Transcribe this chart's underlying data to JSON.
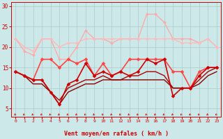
{
  "xlabel": "Vent moyen/en rafales ( km/h )",
  "xlim": [
    -0.5,
    23.5
  ],
  "ylim": [
    3,
    31
  ],
  "yticks": [
    5,
    10,
    15,
    20,
    25,
    30
  ],
  "xticks": [
    0,
    1,
    2,
    3,
    4,
    5,
    6,
    7,
    8,
    9,
    10,
    11,
    12,
    13,
    14,
    15,
    16,
    17,
    18,
    19,
    20,
    21,
    22,
    23
  ],
  "bg_color": "#cce8e8",
  "grid_color": "#aacccc",
  "lines": [
    {
      "y": [
        22,
        19,
        18,
        22,
        22,
        17,
        17,
        20,
        24,
        22,
        22,
        21,
        22,
        22,
        22,
        28,
        28,
        26,
        22,
        22,
        22,
        21,
        22,
        20
      ],
      "color": "#ffaaaa",
      "lw": 1.0,
      "marker": "D",
      "ms": 2.0,
      "zorder": 2
    },
    {
      "y": [
        22,
        20,
        19,
        22,
        22,
        20,
        21,
        21,
        22,
        22,
        22,
        22,
        22,
        22,
        22,
        22,
        22,
        22,
        22,
        21,
        21,
        21,
        22,
        20
      ],
      "color": "#ffbbbb",
      "lw": 1.0,
      "marker": "D",
      "ms": 2.0,
      "zorder": 2
    },
    {
      "y": [
        14,
        13,
        12,
        17,
        17,
        15,
        17,
        16,
        17,
        13,
        16,
        13,
        14,
        17,
        17,
        17,
        17,
        17,
        14,
        14,
        10,
        14,
        15,
        15
      ],
      "color": "#ff4444",
      "lw": 1.2,
      "marker": "D",
      "ms": 2.5,
      "zorder": 4
    },
    {
      "y": [
        14,
        13,
        12,
        12,
        9,
        6,
        11,
        12,
        16,
        13,
        14,
        13,
        14,
        13,
        14,
        17,
        16,
        17,
        8,
        10,
        10,
        13,
        15,
        15
      ],
      "color": "#cc0000",
      "lw": 1.2,
      "marker": "D",
      "ms": 2.5,
      "zorder": 5
    },
    {
      "y": [
        14,
        13,
        12,
        12,
        9,
        7,
        10,
        11,
        12,
        12,
        13,
        12,
        12,
        13,
        13,
        14,
        14,
        13,
        10,
        10,
        10,
        12,
        14,
        15
      ],
      "color": "#aa0000",
      "lw": 1.0,
      "marker": null,
      "ms": 0,
      "zorder": 3
    },
    {
      "y": [
        14,
        13,
        11,
        11,
        9,
        6,
        9,
        10,
        11,
        11,
        12,
        12,
        12,
        12,
        12,
        12,
        12,
        12,
        10,
        10,
        10,
        11,
        13,
        14
      ],
      "color": "#880000",
      "lw": 1.0,
      "marker": null,
      "ms": 0,
      "zorder": 3
    }
  ],
  "arrow_color": "#cc0000",
  "tick_color": "#cc0000"
}
